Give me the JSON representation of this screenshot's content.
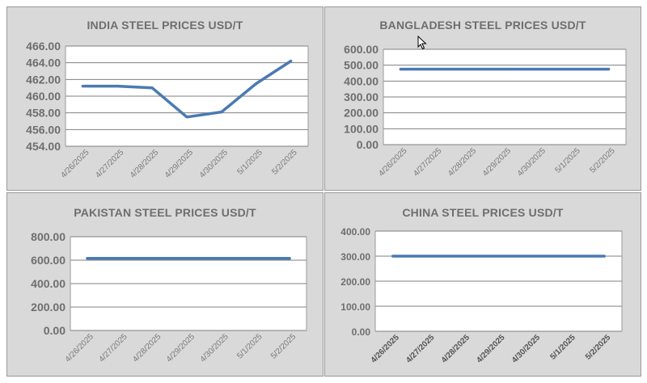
{
  "chart_data": [
    {
      "type": "line",
      "title": "INDIA STEEL PRICES USD/T",
      "categories": [
        "4/26/2025",
        "4/27/2025",
        "4/28/2025",
        "4/29/2025",
        "4/30/2025",
        "5/1/2025",
        "5/2/2025"
      ],
      "values": [
        461.2,
        461.2,
        461.0,
        457.5,
        458.1,
        461.5,
        464.2
      ],
      "ylim": [
        454,
        466
      ],
      "yticks": [
        "466.00",
        "464.00",
        "462.00",
        "460.00",
        "458.00",
        "456.00",
        "454.00"
      ],
      "grid": true,
      "line_color": "#4a7ab3",
      "bold_ticks": false
    },
    {
      "type": "line",
      "title": "BANGLADESH STEEL PRICES USD/T",
      "categories": [
        "4/26/2025",
        "4/27/2025",
        "4/28/2025",
        "4/29/2025",
        "4/30/2025",
        "5/1/2025",
        "5/2/2025"
      ],
      "values": [
        475,
        475,
        475,
        475,
        475,
        475,
        475
      ],
      "ylim": [
        0,
        600
      ],
      "yticks": [
        "600.00",
        "500.00",
        "400.00",
        "300.00",
        "200.00",
        "100.00",
        "0.00"
      ],
      "grid": true,
      "line_color": "#4a7ab3",
      "bold_ticks": false
    },
    {
      "type": "line",
      "title": "PAKISTAN STEEL PRICES USD/T",
      "categories": [
        "4/26/2025",
        "4/27/2025",
        "4/28/2025",
        "4/29/2025",
        "4/30/2025",
        "5/1/2025",
        "5/2/2025"
      ],
      "values": [
        615,
        615,
        615,
        615,
        615,
        615,
        615
      ],
      "ylim": [
        0,
        800
      ],
      "yticks": [
        "800.00",
        "600.00",
        "400.00",
        "200.00",
        "0.00"
      ],
      "grid": true,
      "line_color": "#4a7ab3",
      "bold_ticks": false
    },
    {
      "type": "line",
      "title": "CHINA STEEL PRICES USD/T",
      "categories": [
        "4/26/2025",
        "4/27/2025",
        "4/28/2025",
        "4/29/2025",
        "4/30/2025",
        "5/1/2025",
        "5/2/2025"
      ],
      "values": [
        300,
        300,
        300,
        300,
        300,
        300,
        300
      ],
      "ylim": [
        0,
        400
      ],
      "yticks": [
        "400.00",
        "300.00",
        "200.00",
        "100.00",
        "0.00"
      ],
      "grid": true,
      "line_color": "#4a7ab3",
      "bold_ticks": true
    }
  ],
  "icons": {
    "cursor": "mouse-pointer-icon"
  }
}
